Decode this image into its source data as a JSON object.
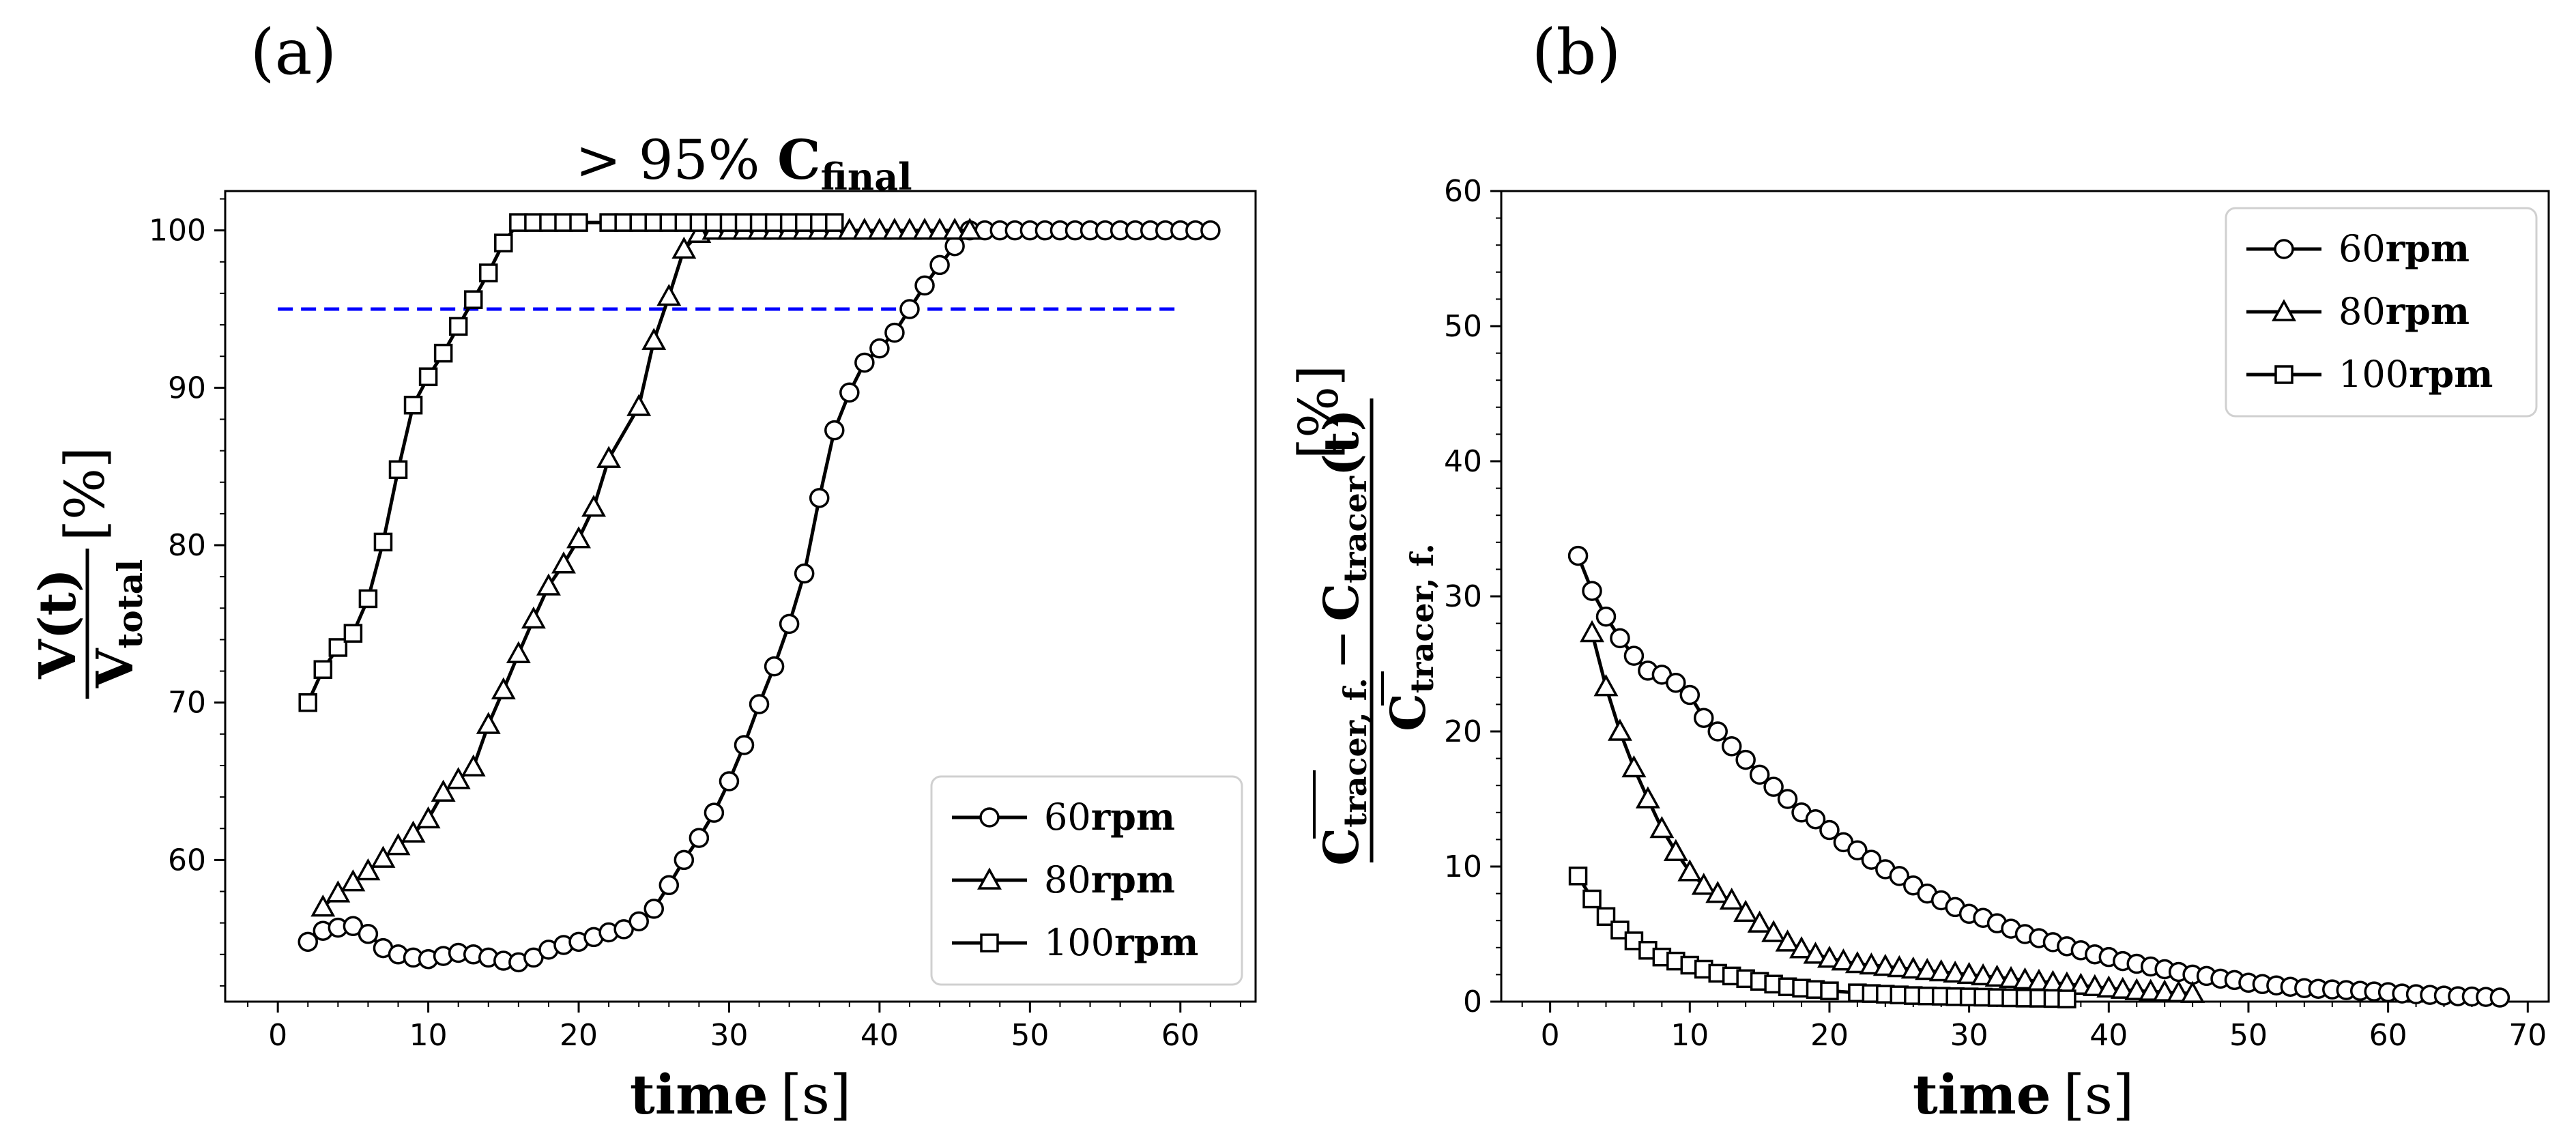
{
  "panels": {
    "a": {
      "label": "(a)"
    },
    "b": {
      "label": "(b)"
    }
  },
  "chart_data": [
    {
      "id": "a",
      "type": "line",
      "title": "",
      "annotation": {
        "prefix": "> 95% ",
        "main": "C",
        "sub": "final"
      },
      "xlabel": {
        "main": "time",
        "unit": "[s]"
      },
      "ylabel": {
        "num": "V(t)",
        "den_main": "V",
        "den_sub": "total",
        "unit": "[%]"
      },
      "xlim": [
        -3.5,
        65
      ],
      "ylim": [
        51,
        102.5
      ],
      "xticks": [
        0,
        10,
        20,
        30,
        40,
        50,
        60
      ],
      "yticks": [
        60,
        70,
        80,
        90,
        100
      ],
      "grid": false,
      "legend": "lower-right",
      "reference_line": {
        "y": 95,
        "x": [
          0,
          60
        ],
        "color": "#0000ff",
        "style": "dashed"
      },
      "series": [
        {
          "name": "60",
          "name_unit": "rpm",
          "marker": "circle",
          "x": [
            2,
            3,
            4,
            5,
            6,
            7,
            8,
            9,
            10,
            11,
            12,
            13,
            14,
            15,
            16,
            17,
            18,
            19,
            20,
            21,
            22,
            23,
            24,
            25,
            26,
            27,
            28,
            29,
            30,
            31,
            32,
            33,
            34,
            35,
            36,
            37,
            38,
            39,
            40,
            41,
            42,
            43,
            44,
            45,
            46,
            47,
            48,
            49,
            50,
            51,
            52,
            53,
            54,
            55,
            56,
            57,
            58,
            59,
            60,
            61,
            62
          ],
          "y": [
            54.8,
            55.5,
            55.7,
            55.8,
            55.3,
            54.4,
            54.0,
            53.8,
            53.7,
            53.9,
            54.1,
            54.0,
            53.8,
            53.6,
            53.5,
            53.8,
            54.3,
            54.6,
            54.8,
            55.1,
            55.4,
            55.6,
            56.1,
            56.9,
            58.4,
            60.0,
            61.4,
            63.0,
            65.0,
            67.3,
            69.9,
            72.3,
            75.0,
            78.2,
            83.0,
            87.3,
            89.7,
            91.6,
            92.5,
            93.5,
            95.0,
            96.5,
            97.8,
            99.0,
            100.0,
            100.0,
            100.0,
            100.0,
            100.0,
            100.0,
            100.0,
            100.0,
            100.0,
            100.0,
            100.0,
            100.0,
            100.0,
            100.0,
            100.0,
            100.0,
            100.0
          ]
        },
        {
          "name": "80",
          "name_unit": "rpm",
          "marker": "triangle",
          "x": [
            3,
            4,
            5,
            6,
            7,
            8,
            9,
            10,
            11,
            12,
            13,
            14,
            15,
            16,
            17,
            18,
            19,
            20,
            21,
            22,
            24,
            25,
            26,
            27,
            28,
            29,
            30,
            31,
            32,
            33,
            34,
            35,
            36,
            37,
            38,
            39,
            40,
            41,
            42,
            43,
            44,
            45,
            46
          ],
          "y": [
            57.0,
            57.9,
            58.6,
            59.3,
            60.1,
            60.9,
            61.7,
            62.6,
            64.3,
            65.1,
            65.9,
            68.6,
            70.8,
            73.1,
            75.3,
            77.4,
            78.8,
            80.4,
            82.4,
            85.5,
            88.8,
            93.0,
            95.8,
            98.8,
            99.8,
            100.0,
            100.0,
            100.0,
            100.0,
            100.0,
            100.0,
            100.0,
            100.0,
            100.0,
            100.0,
            100.0,
            100.0,
            100.0,
            100.0,
            100.0,
            100.0,
            100.0,
            100.0
          ]
        },
        {
          "name": "100",
          "name_unit": "rpm",
          "marker": "square",
          "x": [
            2,
            3,
            4,
            5,
            6,
            7,
            8,
            9,
            10,
            11,
            12,
            13,
            14,
            15,
            16,
            17,
            18,
            19,
            20,
            22,
            23,
            24,
            25,
            26,
            27,
            28,
            29,
            30,
            31,
            32,
            33,
            34,
            35,
            36,
            37
          ],
          "y": [
            70.0,
            72.1,
            73.5,
            74.4,
            76.6,
            80.2,
            84.8,
            88.9,
            90.7,
            92.2,
            93.9,
            95.6,
            97.3,
            99.2,
            100.5,
            100.5,
            100.5,
            100.5,
            100.5,
            100.5,
            100.5,
            100.5,
            100.5,
            100.5,
            100.5,
            100.5,
            100.5,
            100.5,
            100.5,
            100.5,
            100.5,
            100.5,
            100.5,
            100.5,
            100.5
          ]
        }
      ]
    },
    {
      "id": "b",
      "type": "line",
      "title": "",
      "xlabel": {
        "main": "time",
        "unit": "[s]"
      },
      "ylabel": {
        "num_a_main": "C",
        "num_a_sub": "tracer, f.",
        "minus": "−",
        "num_b_main": "C",
        "num_b_sub": "tracer",
        "num_b_arg": "(t)",
        "den_main": "C",
        "den_sub": "tracer, f.",
        "unit": "[%]"
      },
      "xlim": [
        -3.5,
        71.5
      ],
      "ylim": [
        0,
        60
      ],
      "xticks": [
        0,
        10,
        20,
        30,
        40,
        50,
        60,
        70
      ],
      "yticks": [
        0,
        10,
        20,
        30,
        40,
        50,
        60
      ],
      "grid": false,
      "legend": "top-right",
      "series": [
        {
          "name": "60",
          "name_unit": "rpm",
          "marker": "circle",
          "x": [
            2,
            3,
            4,
            5,
            6,
            7,
            8,
            9,
            10,
            11,
            12,
            13,
            14,
            15,
            16,
            17,
            18,
            19,
            20,
            21,
            22,
            23,
            24,
            25,
            26,
            27,
            28,
            29,
            30,
            31,
            32,
            33,
            34,
            35,
            36,
            37,
            38,
            39,
            40,
            41,
            42,
            43,
            44,
            45,
            46,
            47,
            48,
            49,
            50,
            51,
            52,
            53,
            54,
            55,
            56,
            57,
            58,
            59,
            60,
            61,
            62,
            63,
            64,
            65,
            66,
            67,
            68
          ],
          "y": [
            33.0,
            30.4,
            28.5,
            26.9,
            25.6,
            24.5,
            24.2,
            23.6,
            22.7,
            21.0,
            20.0,
            18.9,
            17.9,
            16.8,
            15.9,
            15.0,
            14.0,
            13.5,
            12.7,
            11.8,
            11.2,
            10.5,
            9.8,
            9.3,
            8.6,
            8.0,
            7.5,
            7.0,
            6.5,
            6.2,
            5.8,
            5.4,
            5.0,
            4.7,
            4.4,
            4.1,
            3.8,
            3.5,
            3.3,
            3.0,
            2.8,
            2.6,
            2.4,
            2.2,
            2.0,
            1.9,
            1.7,
            1.6,
            1.4,
            1.3,
            1.2,
            1.1,
            1.0,
            0.95,
            0.9,
            0.85,
            0.8,
            0.75,
            0.7,
            0.6,
            0.55,
            0.5,
            0.45,
            0.4,
            0.38,
            0.35,
            0.3
          ]
        },
        {
          "name": "80",
          "name_unit": "rpm",
          "marker": "triangle",
          "x": [
            3,
            4,
            5,
            6,
            7,
            8,
            9,
            10,
            11,
            12,
            13,
            14,
            15,
            16,
            17,
            18,
            19,
            20,
            21,
            22,
            23,
            24,
            25,
            26,
            27,
            28,
            29,
            30,
            31,
            32,
            33,
            34,
            35,
            36,
            37,
            38,
            39,
            40,
            41,
            42,
            43,
            44,
            45,
            46
          ],
          "y": [
            27.3,
            23.3,
            20.0,
            17.3,
            15.0,
            12.8,
            11.1,
            9.6,
            8.6,
            8.0,
            7.5,
            6.6,
            5.8,
            5.1,
            4.4,
            3.9,
            3.5,
            3.2,
            3.0,
            2.8,
            2.7,
            2.6,
            2.5,
            2.4,
            2.3,
            2.2,
            2.1,
            2.0,
            1.9,
            1.8,
            1.7,
            1.6,
            1.5,
            1.4,
            1.3,
            1.2,
            1.1,
            1.0,
            0.9,
            0.8,
            0.75,
            0.7,
            0.65,
            0.6
          ]
        },
        {
          "name": "100",
          "name_unit": "rpm",
          "marker": "square",
          "x": [
            2,
            3,
            4,
            5,
            6,
            7,
            8,
            9,
            10,
            11,
            12,
            13,
            14,
            15,
            16,
            17,
            18,
            19,
            20,
            22,
            23,
            24,
            25,
            26,
            27,
            28,
            29,
            30,
            31,
            32,
            33,
            34,
            35,
            36,
            37
          ],
          "y": [
            9.3,
            7.6,
            6.3,
            5.3,
            4.5,
            3.8,
            3.3,
            3.0,
            2.7,
            2.4,
            2.1,
            1.9,
            1.7,
            1.5,
            1.3,
            1.1,
            1.0,
            0.9,
            0.8,
            0.65,
            0.6,
            0.55,
            0.5,
            0.45,
            0.42,
            0.4,
            0.37,
            0.35,
            0.33,
            0.3,
            0.28,
            0.26,
            0.25,
            0.23,
            0.2
          ]
        }
      ]
    }
  ]
}
